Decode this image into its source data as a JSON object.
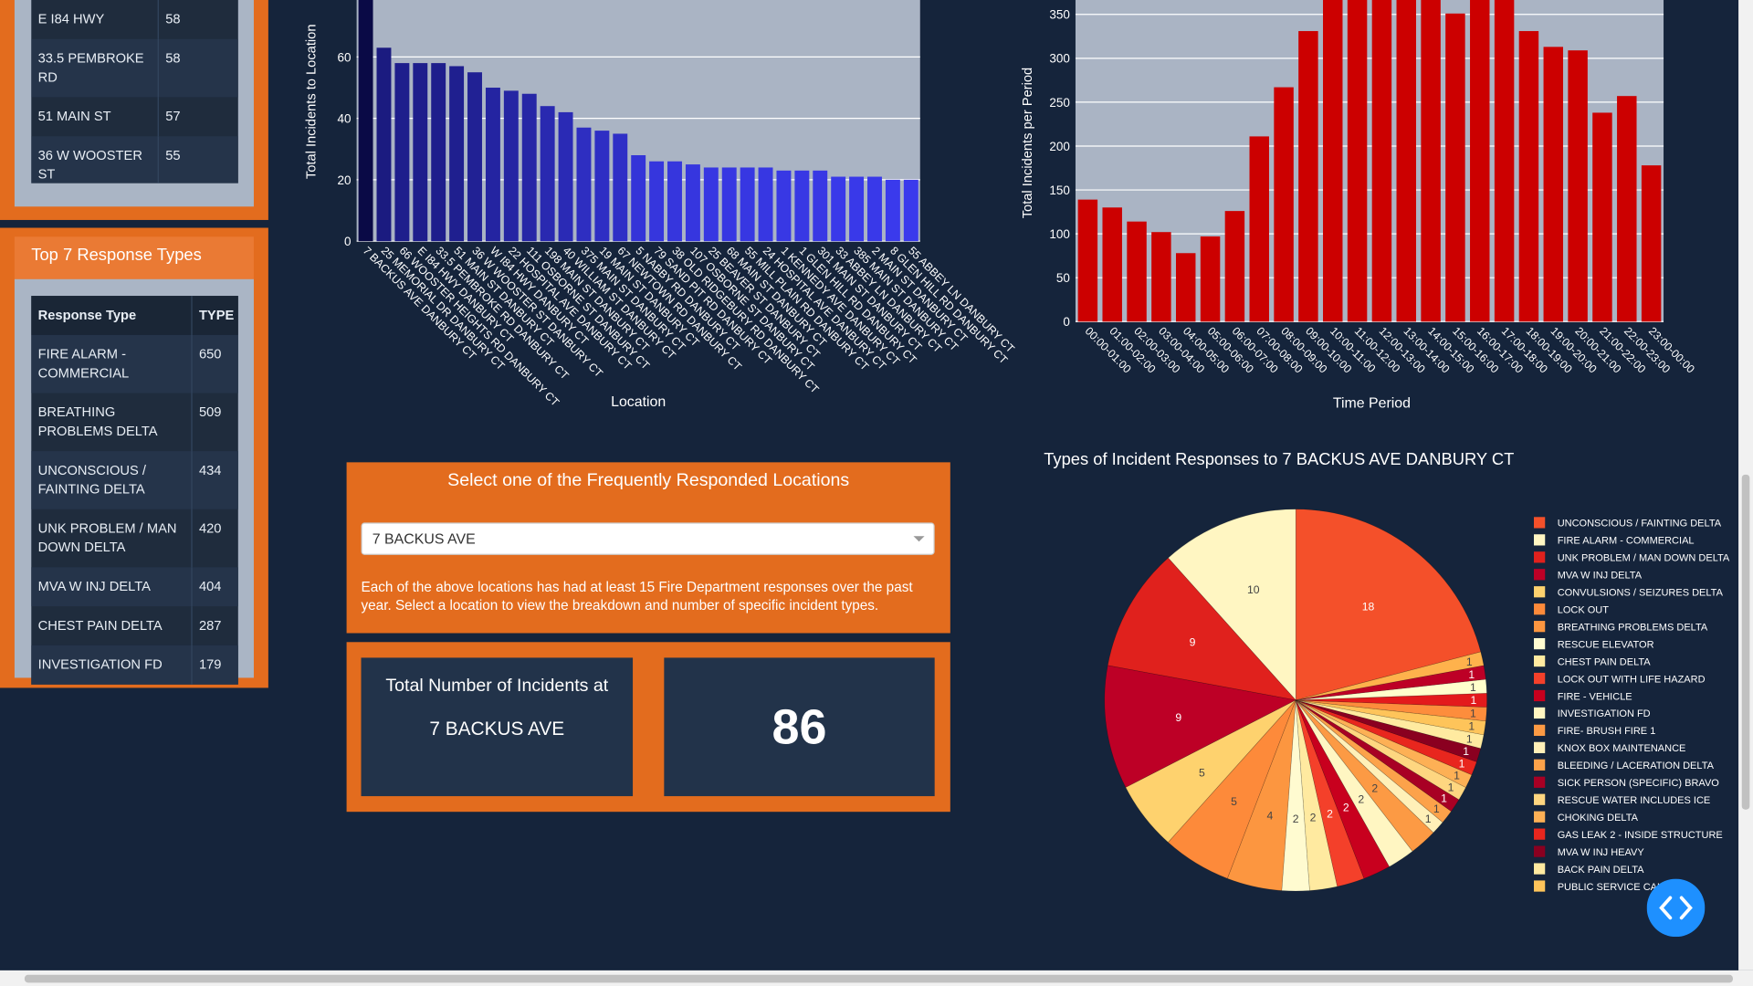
{
  "location_table": {
    "rows": [
      [
        "E I84 HWY",
        58
      ],
      [
        "33.5 PEMBROKE RD",
        58
      ],
      [
        "51 MAIN ST",
        57
      ],
      [
        "36 W WOOSTER ST",
        55
      ]
    ]
  },
  "response_types": {
    "title": "Top 7 Response Types",
    "header": [
      "Response Type",
      "TYPE"
    ],
    "rows": [
      [
        "FIRE ALARM - COMMERCIAL",
        650
      ],
      [
        "BREATHING PROBLEMS DELTA",
        509
      ],
      [
        "UNCONSCIOUS / FAINTING DELTA",
        434
      ],
      [
        "UNK PROBLEM / MAN DOWN DELTA",
        420
      ],
      [
        "MVA W INJ DELTA",
        404
      ],
      [
        "CHEST PAIN DELTA",
        287
      ],
      [
        "INVESTIGATION FD",
        179
      ]
    ]
  },
  "location_select": {
    "title": "Select one of the Frequently Responded Locations",
    "selected": "7 BACKUS AVE",
    "description": "Each of the above locations has had at least 15 Fire Department responses over the past year. Select a location to view the breakdown and number of specific incident types."
  },
  "total": {
    "label": "Total Number of Incidents at",
    "location": "7 BACKUS AVE",
    "count": 86
  },
  "chart_data": [
    {
      "type": "bar",
      "y_label": "Total Incidents to Location",
      "x_label": "Location",
      "categories": [
        "7 BACKUS AVE DANBURY CT",
        "25 MEMORIAL DR DANBURY CT",
        "66 WOOSTER HEIGHTS RD DANBURY CT",
        "E I84 HWY DANBURY CT",
        "33.5 PEMBROKE RD DANBURY CT",
        "51 MAIN ST DANBURY CT",
        "36 W WOOSTER ST DANBURY CT",
        "W I84 HWY DANBURY CT",
        "22 HOSPITAL AVE DANBURY CT",
        "111 OSBORNE ST DANBURY CT",
        "198 MAIN ST DANBURY CT",
        "40 WILLIAM ST DANBURY CT",
        "375 MAIN ST DANBURY CT",
        "19 MAIN ST DANBURY CT",
        "67 NEWTOWN RD DANBURY CT",
        "5 NABBY RD DANBURY CT",
        "79 SAND PIT RD DANBURY CT",
        "38 OLD RIDGEBURY RD DANBURY CT",
        "107 OSBORNE ST DANBURY CT",
        "25 BEAVER ST DANBURY CT",
        "68 MAIN ST DANBURY CT",
        "55 MILL PLAIN RD DANBURY CT",
        "24 HOSPITAL AVE DANBURY CT",
        "1 KENNEDY AVE DANBURY CT",
        "1 GLEN HILL RD DANBURY CT",
        "301 MAIN ST DANBURY CT",
        "33 ABBEY LN DANBURY CT",
        "385 MAIN ST DANBURY CT",
        "2 MAIN ST DANBURY CT",
        "8 GLEN HILL RD DANBURY CT",
        "55 ABBEY LN DANBURY CT"
      ],
      "values": [
        86,
        63,
        58,
        58,
        58,
        57,
        55,
        50,
        49,
        48,
        44,
        42,
        37,
        36,
        35,
        28,
        26,
        26,
        25,
        24,
        24,
        24,
        24,
        23,
        23,
        23,
        21,
        21,
        21,
        20,
        20
      ],
      "colorscale": [
        "#3a3aec",
        "#0a0a46"
      ],
      "ylim": [
        0,
        90
      ],
      "yticks": [
        0,
        20,
        40,
        60
      ],
      "grid": true
    },
    {
      "type": "bar",
      "y_label": "Total Incidents per Period",
      "x_label": "Time Period",
      "categories": [
        "00:00-01:00",
        "01:00-02:00",
        "02:00-03:00",
        "03:00-04:00",
        "04:00-05:00",
        "05:00-06:00",
        "06:00-07:00",
        "07:00-08:00",
        "08:00-09:00",
        "09:00-10:00",
        "10:00-11:00",
        "11:00-12:00",
        "12:00-13:00",
        "13:00-14:00",
        "14:00-15:00",
        "15:00-16:00",
        "16:00-17:00",
        "17:00-18:00",
        "18:00-19:00",
        "19:00-20:00",
        "20:00-21:00",
        "21:00-22:00",
        "22:00-23:00",
        "23:00-00:00"
      ],
      "values": [
        139,
        130,
        114,
        102,
        78,
        97,
        126,
        211,
        267,
        331,
        382,
        395,
        388,
        390,
        374,
        351,
        381,
        376,
        331,
        313,
        309,
        238,
        257,
        178
      ],
      "color": "#cc0000",
      "ylim": [
        0,
        400
      ],
      "yticks": [
        0,
        50,
        100,
        150,
        200,
        250,
        300,
        350
      ],
      "grid": true
    },
    {
      "type": "pie",
      "title": "Types of Incident Responses to 7 BACKUS AVE DANBURY CT",
      "direction": "counterclockwise",
      "labels": [
        "UNCONSCIOUS / FAINTING DELTA",
        "FIRE ALARM - COMMERCIAL",
        "UNK PROBLEM / MAN DOWN DELTA",
        "MVA W INJ DELTA",
        "CONVULSIONS / SEIZURES DELTA",
        "LOCK OUT",
        "BREATHING PROBLEMS DELTA",
        "RESCUE ELEVATOR",
        "CHEST PAIN DELTA",
        "LOCK OUT WITH LIFE HAZARD",
        "FIRE - VEHICLE",
        "INVESTIGATION FD",
        "FIRE- BRUSH FIRE 1",
        "KNOX BOX MAINTENANCE",
        "BLEEDING / LACERATION DELTA",
        "SICK PERSON (SPECIFIC) BRAVO",
        "RESCUE WATER INCLUDES ICE",
        "CHOKING DELTA",
        "GAS LEAK 2 - INSIDE STRUCTURE",
        "MVA W INJ HEAVY",
        "BACK PAIN DELTA",
        "PUBLIC SERVICE CALL",
        null,
        null,
        null,
        null,
        null
      ],
      "values": [
        18,
        10,
        9,
        9,
        5,
        5,
        4,
        2,
        2,
        2,
        2,
        2,
        2,
        1,
        1,
        1,
        1,
        1,
        1,
        1,
        1,
        1,
        1,
        1,
        1,
        1,
        1
      ],
      "colors": [
        "#f4502a",
        "#fff6c2",
        "#e0211d",
        "#bd0026",
        "#fed26e",
        "#fd8a3a",
        "#fc9640",
        "#fffbd0",
        "#ffeaa0",
        "#f4402a",
        "#c8001e",
        "#fff6c2",
        "#fc9a44",
        "#fff0b8",
        "#fca24a",
        "#a80024",
        "#fed680",
        "#fdb055",
        "#e8261e",
        "#8a0020",
        "#ffeaa0",
        "#fec45a",
        "#fd8d3c",
        "#e31a1c",
        "#ffffcc",
        "#bd0026",
        "#feb24c"
      ]
    }
  ]
}
